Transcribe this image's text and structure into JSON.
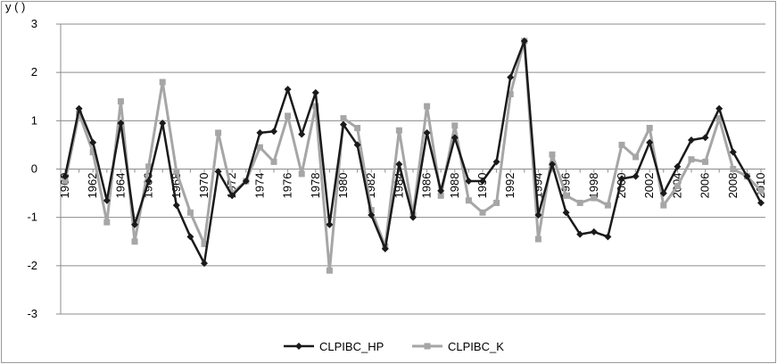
{
  "title_fragment": "y         (          )",
  "chart_data": {
    "type": "line",
    "title": "",
    "xlabel": "",
    "ylabel": "",
    "ylim": [
      -3,
      3
    ],
    "yticks": [
      3,
      2,
      1,
      0,
      -1,
      -2,
      -3
    ],
    "xlim": [
      1960,
      2010
    ],
    "x_tick_labels": [
      "1960",
      "1962",
      "1964",
      "1966",
      "1968",
      "1970",
      "1972",
      "1974",
      "1976",
      "1978",
      "1980",
      "1982",
      "1984",
      "1986",
      "1988",
      "1990",
      "1992",
      "1994",
      "1996",
      "1998",
      "2000",
      "2002",
      "2004",
      "2006",
      "2008",
      "2010"
    ],
    "grid": true,
    "legend_position": "bottom",
    "x": [
      1960,
      1961,
      1962,
      1963,
      1964,
      1965,
      1966,
      1967,
      1968,
      1969,
      1970,
      1971,
      1972,
      1973,
      1974,
      1975,
      1976,
      1977,
      1978,
      1979,
      1980,
      1981,
      1982,
      1983,
      1984,
      1985,
      1986,
      1987,
      1988,
      1989,
      1990,
      1991,
      1992,
      1993,
      1994,
      1995,
      1996,
      1997,
      1998,
      1999,
      2000,
      2001,
      2002,
      2003,
      2004,
      2005,
      2006,
      2007,
      2008,
      2009,
      2010
    ],
    "series": [
      {
        "name": "CLPIBC_HP",
        "color": "#1a1a1a",
        "marker": "diamond",
        "values": [
          -0.15,
          1.25,
          0.55,
          -0.65,
          0.95,
          -1.15,
          -0.25,
          0.95,
          -0.75,
          -1.4,
          -1.95,
          -0.05,
          -0.55,
          -0.25,
          0.75,
          0.78,
          1.65,
          0.72,
          1.58,
          -1.15,
          0.92,
          0.5,
          -0.95,
          -1.65,
          0.1,
          -1.0,
          0.75,
          -0.45,
          0.65,
          -0.25,
          -0.25,
          0.15,
          1.9,
          2.65,
          -0.95,
          0.1,
          -0.9,
          -1.35,
          -1.3,
          -1.4,
          -0.2,
          -0.15,
          0.55,
          -0.5,
          0.05,
          0.6,
          0.65,
          1.25,
          0.35,
          -0.15,
          -0.7
        ]
      },
      {
        "name": "CLPIBC_K",
        "color": "#a6a6a6",
        "marker": "square",
        "values": [
          -0.25,
          1.15,
          0.35,
          -1.1,
          1.4,
          -1.5,
          0.05,
          1.8,
          -0.05,
          -0.9,
          -1.55,
          0.75,
          -0.5,
          -0.25,
          0.45,
          0.15,
          1.1,
          -0.1,
          1.3,
          -2.1,
          1.05,
          0.85,
          -0.85,
          -1.6,
          0.8,
          -0.95,
          1.3,
          -0.55,
          0.9,
          -0.65,
          -0.9,
          -0.7,
          1.55,
          2.65,
          -1.45,
          0.3,
          -0.55,
          -0.7,
          -0.6,
          -0.75,
          0.5,
          0.25,
          0.85,
          -0.75,
          -0.35,
          0.2,
          0.15,
          1.05,
          0.0,
          -0.15,
          -0.45
        ]
      }
    ]
  }
}
